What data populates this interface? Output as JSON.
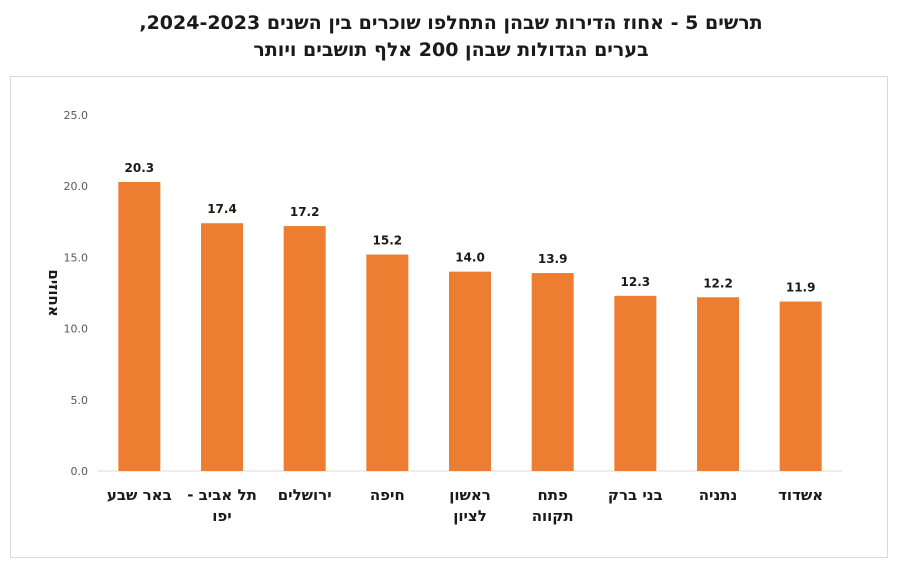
{
  "chart_data": {
    "type": "bar",
    "title": "תרשים 5 - אחוז הדירות שבהן התחלפו שוכרים בין השנים 2024-2023,",
    "subtitle": "בערים הגדולות שבהן 200 אלף תושבים ויותר",
    "ylabel": "אחוזים",
    "xlabel": "",
    "ylim": [
      0,
      25
    ],
    "yticks": [
      "0.0",
      "5.0",
      "10.0",
      "15.0",
      "20.0",
      "25.0"
    ],
    "grid": false,
    "bar_color": "#ED7D31",
    "categories": [
      [
        "באר שבע"
      ],
      [
        "תל אביב -",
        "יפו"
      ],
      [
        "ירושלים"
      ],
      [
        "חיפה"
      ],
      [
        "ראשון",
        "לציון"
      ],
      [
        "פתח",
        "תקווה"
      ],
      [
        "בני ברק"
      ],
      [
        "נתניה"
      ],
      [
        "אשדוד"
      ]
    ],
    "values": [
      20.3,
      17.4,
      17.2,
      15.2,
      14.0,
      13.9,
      12.3,
      12.2,
      11.9
    ],
    "value_labels": [
      "20.3",
      "17.4",
      "17.2",
      "15.2",
      "14.0",
      "13.9",
      "12.3",
      "12.2",
      "11.9"
    ]
  }
}
